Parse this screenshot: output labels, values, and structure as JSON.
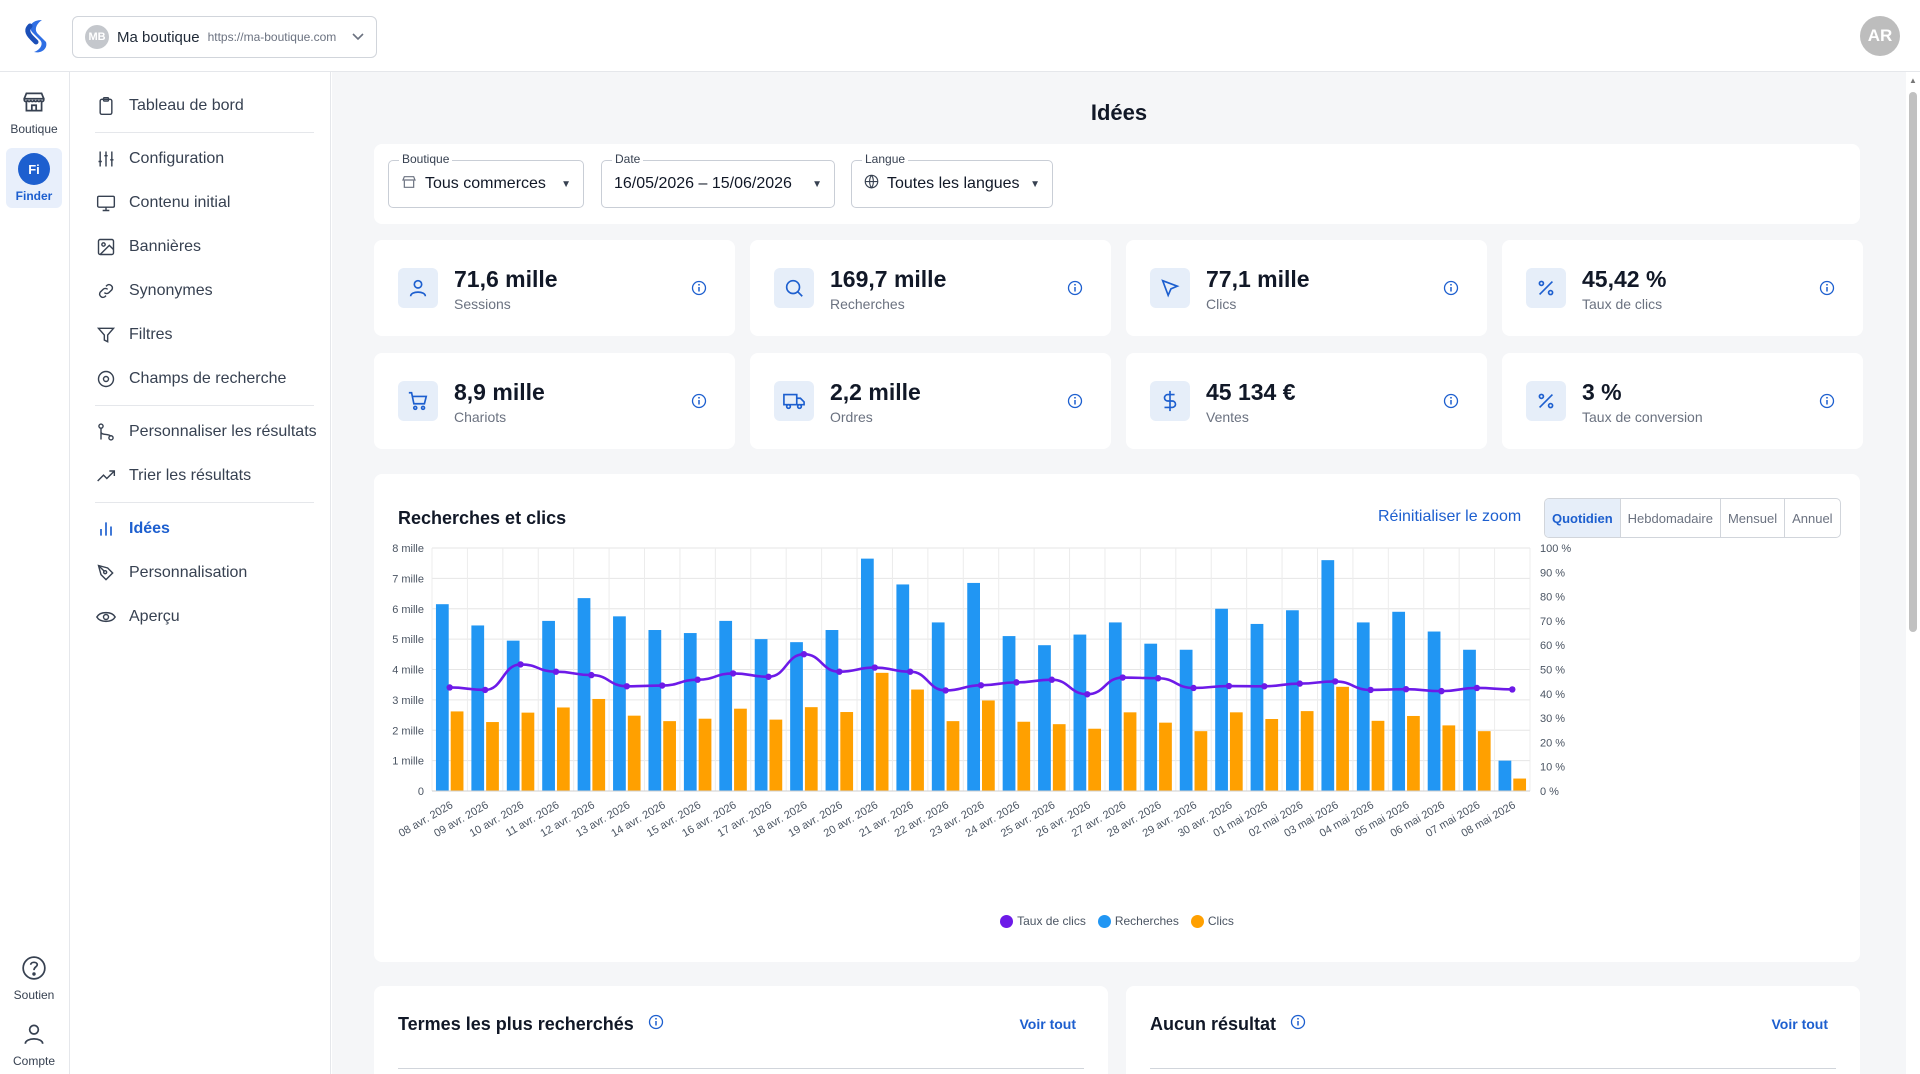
{
  "topbar": {
    "shop_avatar": "MB",
    "shop_name": "Ma boutique",
    "shop_url": "https://ma-boutique.com",
    "user_initials": "AR"
  },
  "rail": {
    "items": [
      {
        "label": "Boutique",
        "icon": "store-icon"
      },
      {
        "label": "Finder",
        "icon": "finder-icon",
        "badge": "Fi",
        "active": true
      }
    ],
    "bottom": [
      {
        "label": "Soutien",
        "icon": "help-icon"
      },
      {
        "label": "Compte",
        "icon": "user-icon"
      }
    ]
  },
  "nav": {
    "items": [
      "Tableau de bord",
      "Configuration",
      "Contenu initial",
      "Bannières",
      "Synonymes",
      "Filtres",
      "Champs de recherche",
      "Personnaliser les résultats",
      "Trier les résultats",
      "Idées",
      "Personnalisation",
      "Aperçu"
    ],
    "active": "Idées"
  },
  "page": {
    "title": "Idées"
  },
  "filters": {
    "boutique": {
      "label": "Boutique",
      "value": "Tous commerces"
    },
    "date": {
      "label": "Date",
      "value": "16/05/2026 – 15/06/2026"
    },
    "langue": {
      "label": "Langue",
      "value": "Toutes les langues"
    }
  },
  "kpis": [
    {
      "value": "71,6 mille",
      "label": "Sessions",
      "icon": "user-icon"
    },
    {
      "value": "169,7 mille",
      "label": "Recherches",
      "icon": "search-icon"
    },
    {
      "value": "77,1 mille",
      "label": "Clics",
      "icon": "cursor-icon"
    },
    {
      "value": "45,42 %",
      "label": "Taux de clics",
      "icon": "percent-icon"
    },
    {
      "value": "8,9 mille",
      "label": "Chariots",
      "icon": "cart-icon"
    },
    {
      "value": "2,2 mille",
      "label": "Ordres",
      "icon": "truck-icon"
    },
    {
      "value": "45 134 €",
      "label": "Ventes",
      "icon": "dollar-icon"
    },
    {
      "value": "3 %",
      "label": "Taux de conversion",
      "icon": "percent-icon"
    }
  ],
  "chart": {
    "title": "Recherches et clics",
    "reset_zoom": "Réinitialiser le zoom",
    "periods": [
      "Quotidien",
      "Hebdomadaire",
      "Mensuel",
      "Annuel"
    ],
    "active_period": "Quotidien"
  },
  "colors": {
    "accent": "#1d5fcf",
    "searches": "#2196f3",
    "clicks": "#ffa000",
    "ctr": "#6d1ae8"
  },
  "chart_data": {
    "type": "bar",
    "categories": [
      "08 avr. 2026",
      "09 avr. 2026",
      "10 avr. 2026",
      "11 avr. 2026",
      "12 avr. 2026",
      "13 avr. 2026",
      "14 avr. 2026",
      "15 avr. 2026",
      "16 avr. 2026",
      "17 avr. 2026",
      "18 avr. 2026",
      "19 avr. 2026",
      "20 avr. 2026",
      "21 avr. 2026",
      "22 avr. 2026",
      "23 avr. 2026",
      "24 avr. 2026",
      "25 avr. 2026",
      "26 avr. 2026",
      "27 avr. 2026",
      "28 avr. 2026",
      "29 avr. 2026",
      "30 avr. 2026",
      "01 mai 2026",
      "02 mai 2026",
      "03 mai 2026",
      "04 mai 2026",
      "05 mai 2026",
      "06 mai 2026",
      "07 mai 2026",
      "08 mai 2026"
    ],
    "series": [
      {
        "name": "Recherches",
        "axis": "left",
        "values": [
          6150,
          5450,
          4950,
          5600,
          6350,
          5750,
          5300,
          5200,
          5600,
          5000,
          4900,
          5300,
          7650,
          6800,
          5550,
          6850,
          5100,
          4800,
          5150,
          5550,
          4850,
          4650,
          6000,
          5500,
          5950,
          7600,
          5550,
          5900,
          5250,
          4650,
          1000
        ]
      },
      {
        "name": "Clics",
        "axis": "left",
        "values": [
          2620,
          2270,
          2580,
          2750,
          3030,
          2480,
          2300,
          2380,
          2710,
          2350,
          2760,
          2600,
          3890,
          3340,
          2300,
          2980,
          2280,
          2200,
          2050,
          2590,
          2250,
          1970,
          2590,
          2370,
          2630,
          3430,
          2310,
          2470,
          2160,
          1970,
          410
        ]
      },
      {
        "name": "Taux de clics",
        "type": "line",
        "axis": "right",
        "unit": "%",
        "values": [
          42.6,
          41.6,
          52.1,
          49.1,
          47.7,
          43.1,
          43.4,
          45.8,
          48.4,
          47.0,
          56.3,
          49.1,
          50.8,
          49.1,
          41.4,
          43.5,
          44.7,
          45.8,
          39.8,
          46.7,
          46.4,
          42.4,
          43.2,
          43.1,
          44.2,
          45.1,
          41.6,
          41.9,
          41.1,
          42.4,
          41.8
        ]
      }
    ],
    "y_left": {
      "ylim": [
        0,
        8000
      ],
      "ticks": [
        "0",
        "1 mille",
        "2 mille",
        "3 mille",
        "4 mille",
        "5 mille",
        "6 mille",
        "7 mille",
        "8 mille"
      ]
    },
    "y_right": {
      "ylim": [
        0,
        100
      ],
      "ticks": [
        "0 %",
        "10 %",
        "20 %",
        "30 %",
        "40 %",
        "50 %",
        "60 %",
        "70 %",
        "80 %",
        "90 %",
        "100 %"
      ]
    },
    "legend": [
      "Taux de clics",
      "Recherches",
      "Clics"
    ],
    "grid": true
  },
  "bottom_cards": [
    {
      "title": "Termes les plus recherchés",
      "link": "Voir tout"
    },
    {
      "title": "Aucun résultat",
      "link": "Voir tout"
    }
  ]
}
